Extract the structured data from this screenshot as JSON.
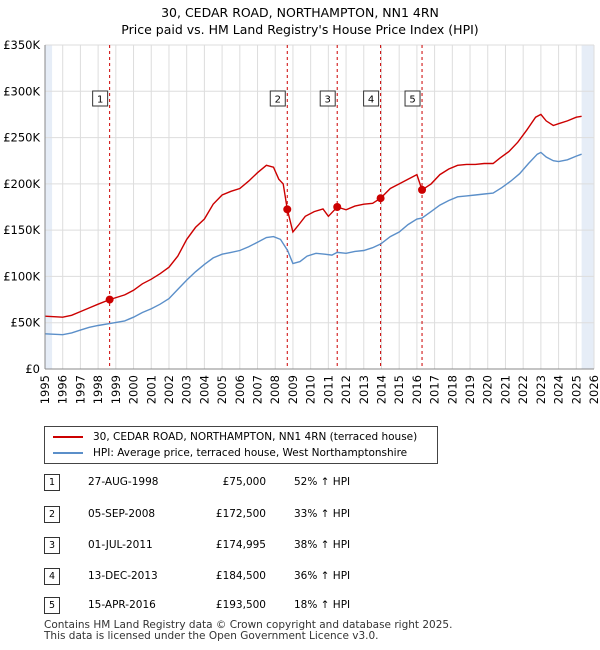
{
  "chart_data": {
    "type": "line",
    "title": "30, CEDAR ROAD, NORTHAMPTON, NN1 4RN",
    "subtitle": "Price paid vs. HM Land Registry's House Price Index (HPI)",
    "y_ticks": [
      "£0",
      "£50K",
      "£100K",
      "£150K",
      "£200K",
      "£250K",
      "£300K",
      "£350K"
    ],
    "y_tick_values": [
      0,
      50000,
      100000,
      150000,
      200000,
      250000,
      300000,
      350000
    ],
    "x_ticks": [
      "1995",
      "1996",
      "1997",
      "1998",
      "1999",
      "2000",
      "2001",
      "2002",
      "2003",
      "2004",
      "2005",
      "2006",
      "2007",
      "2008",
      "2009",
      "2010",
      "2011",
      "2012",
      "2013",
      "2014",
      "2015",
      "2016",
      "2017",
      "2018",
      "2019",
      "2020",
      "2021",
      "2022",
      "2023",
      "2024",
      "2025",
      "2026"
    ],
    "xlim": [
      1995,
      2026
    ],
    "ylim": [
      0,
      350000
    ],
    "colors": {
      "property": "#cc0000",
      "hpi": "#5b8fc9",
      "shade": "#e6edf7",
      "grid": "#dddddd",
      "marker": "#cc0000"
    },
    "series": [
      {
        "name": "30, CEDAR ROAD, NORTHAMPTON, NN1 4RN (terraced house)",
        "color": "#cc0000",
        "points": [
          [
            1995.0,
            57000
          ],
          [
            1996.0,
            56000
          ],
          [
            1996.5,
            58000
          ],
          [
            1997.0,
            62000
          ],
          [
            1997.5,
            66000
          ],
          [
            1998.0,
            70000
          ],
          [
            1998.65,
            75000
          ],
          [
            1999.5,
            80000
          ],
          [
            2000.0,
            85000
          ],
          [
            2000.5,
            92000
          ],
          [
            2001.0,
            97000
          ],
          [
            2001.5,
            103000
          ],
          [
            2002.0,
            110000
          ],
          [
            2002.5,
            122000
          ],
          [
            2003.0,
            140000
          ],
          [
            2003.5,
            153000
          ],
          [
            2004.0,
            162000
          ],
          [
            2004.5,
            178000
          ],
          [
            2005.0,
            188000
          ],
          [
            2005.5,
            192000
          ],
          [
            2006.0,
            195000
          ],
          [
            2006.5,
            203000
          ],
          [
            2007.0,
            212000
          ],
          [
            2007.5,
            220000
          ],
          [
            2007.9,
            218000
          ],
          [
            2008.2,
            205000
          ],
          [
            2008.45,
            200000
          ],
          [
            2008.68,
            172500
          ],
          [
            2009.0,
            148000
          ],
          [
            2009.3,
            155000
          ],
          [
            2009.7,
            165000
          ],
          [
            2010.2,
            170000
          ],
          [
            2010.7,
            173000
          ],
          [
            2011.0,
            165000
          ],
          [
            2011.5,
            174995
          ],
          [
            2012.0,
            172000
          ],
          [
            2012.5,
            176000
          ],
          [
            2013.0,
            178000
          ],
          [
            2013.5,
            179000
          ],
          [
            2013.95,
            184500
          ],
          [
            2014.5,
            195000
          ],
          [
            2015.0,
            200000
          ],
          [
            2015.5,
            205000
          ],
          [
            2016.0,
            210000
          ],
          [
            2016.29,
            193500
          ],
          [
            2016.8,
            200000
          ],
          [
            2017.3,
            210000
          ],
          [
            2017.8,
            216000
          ],
          [
            2018.3,
            220000
          ],
          [
            2018.8,
            221000
          ],
          [
            2019.3,
            221000
          ],
          [
            2019.8,
            222000
          ],
          [
            2020.3,
            222000
          ],
          [
            2020.7,
            228000
          ],
          [
            2021.2,
            235000
          ],
          [
            2021.7,
            245000
          ],
          [
            2022.2,
            258000
          ],
          [
            2022.7,
            272000
          ],
          [
            2023.0,
            275000
          ],
          [
            2023.3,
            268000
          ],
          [
            2023.7,
            263000
          ],
          [
            2024.0,
            265000
          ],
          [
            2024.5,
            268000
          ],
          [
            2025.0,
            272000
          ],
          [
            2025.3,
            273000
          ]
        ]
      },
      {
        "name": "HPI: Average price, terraced house, West Northamptonshire",
        "color": "#5b8fc9",
        "points": [
          [
            1995.0,
            38000
          ],
          [
            1996.0,
            37000
          ],
          [
            1996.5,
            39000
          ],
          [
            1997.0,
            42000
          ],
          [
            1997.5,
            45000
          ],
          [
            1998.0,
            47000
          ],
          [
            1998.65,
            49000
          ],
          [
            1999.5,
            52000
          ],
          [
            2000.0,
            56000
          ],
          [
            2000.5,
            61000
          ],
          [
            2001.0,
            65000
          ],
          [
            2001.5,
            70000
          ],
          [
            2002.0,
            76000
          ],
          [
            2002.5,
            86000
          ],
          [
            2003.0,
            96000
          ],
          [
            2003.5,
            105000
          ],
          [
            2004.0,
            113000
          ],
          [
            2004.5,
            120000
          ],
          [
            2005.0,
            124000
          ],
          [
            2005.5,
            126000
          ],
          [
            2006.0,
            128000
          ],
          [
            2006.5,
            132000
          ],
          [
            2007.0,
            137000
          ],
          [
            2007.5,
            142000
          ],
          [
            2007.9,
            143000
          ],
          [
            2008.3,
            140000
          ],
          [
            2008.7,
            128000
          ],
          [
            2009.0,
            114000
          ],
          [
            2009.4,
            116000
          ],
          [
            2009.8,
            122000
          ],
          [
            2010.3,
            125000
          ],
          [
            2010.8,
            124000
          ],
          [
            2011.2,
            123000
          ],
          [
            2011.5,
            126000
          ],
          [
            2012.0,
            125000
          ],
          [
            2012.5,
            127000
          ],
          [
            2013.0,
            128000
          ],
          [
            2013.5,
            131000
          ],
          [
            2013.95,
            135000
          ],
          [
            2014.5,
            143000
          ],
          [
            2015.0,
            148000
          ],
          [
            2015.5,
            156000
          ],
          [
            2016.0,
            162000
          ],
          [
            2016.29,
            163000
          ],
          [
            2016.8,
            170000
          ],
          [
            2017.3,
            177000
          ],
          [
            2017.8,
            182000
          ],
          [
            2018.3,
            186000
          ],
          [
            2018.8,
            187000
          ],
          [
            2019.3,
            188000
          ],
          [
            2019.8,
            189000
          ],
          [
            2020.3,
            190000
          ],
          [
            2020.8,
            196000
          ],
          [
            2021.3,
            203000
          ],
          [
            2021.8,
            211000
          ],
          [
            2022.3,
            222000
          ],
          [
            2022.8,
            232000
          ],
          [
            2023.0,
            234000
          ],
          [
            2023.3,
            229000
          ],
          [
            2023.7,
            225000
          ],
          [
            2024.0,
            224000
          ],
          [
            2024.5,
            226000
          ],
          [
            2025.0,
            230000
          ],
          [
            2025.3,
            232000
          ]
        ]
      }
    ],
    "sales": [
      {
        "num": "1",
        "x": 1998.65,
        "y": 75000
      },
      {
        "num": "2",
        "x": 2008.68,
        "y": 172500
      },
      {
        "num": "3",
        "x": 2011.5,
        "y": 174995
      },
      {
        "num": "4",
        "x": 2013.95,
        "y": 184500
      },
      {
        "num": "5",
        "x": 2016.29,
        "y": 193500
      }
    ],
    "shaded_ranges": [
      [
        1995.0,
        1995.4
      ],
      [
        2025.3,
        2026.0
      ]
    ]
  },
  "legend": {
    "property_label": "30, CEDAR ROAD, NORTHAMPTON, NN1 4RN (terraced house)",
    "hpi_label": "HPI: Average price, terraced house, West Northamptonshire"
  },
  "table": [
    {
      "num": "1",
      "date": "27-AUG-1998",
      "price": "£75,000",
      "pct": "52% ↑ HPI"
    },
    {
      "num": "2",
      "date": "05-SEP-2008",
      "price": "£172,500",
      "pct": "33% ↑ HPI"
    },
    {
      "num": "3",
      "date": "01-JUL-2011",
      "price": "£174,995",
      "pct": "38% ↑ HPI"
    },
    {
      "num": "4",
      "date": "13-DEC-2013",
      "price": "£184,500",
      "pct": "36% ↑ HPI"
    },
    {
      "num": "5",
      "date": "15-APR-2016",
      "price": "£193,500",
      "pct": "18% ↑ HPI"
    }
  ],
  "footer": {
    "line1": "Contains HM Land Registry data © Crown copyright and database right 2025.",
    "line2": "This data is licensed under the Open Government Licence v3.0."
  }
}
